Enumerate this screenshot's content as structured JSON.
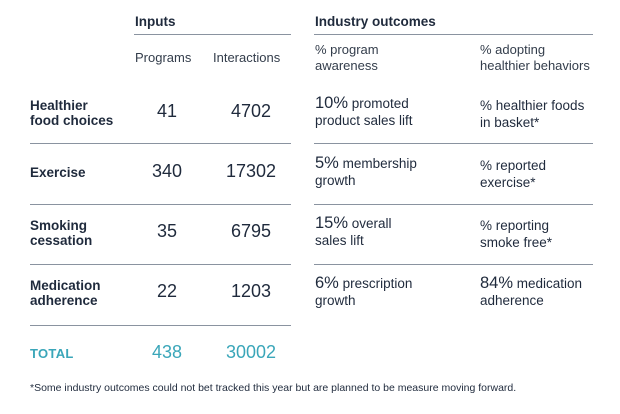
{
  "headers": {
    "inputs": "Inputs",
    "industry_outcomes": "Industry outcomes",
    "programs": "Programs",
    "interactions": "Interactions",
    "pct_awareness": [
      "% program",
      "awareness"
    ],
    "pct_adopting": [
      "% adopting",
      "healthier behaviors"
    ]
  },
  "rows": [
    {
      "label": [
        "Healthier",
        "food choices"
      ],
      "programs": "41",
      "interactions": "4702",
      "awareness": {
        "big": "10%",
        "rest1": " promoted",
        "rest2": "product sales lift"
      },
      "adopting": {
        "big": "",
        "rest1": "% healthier foods",
        "rest2": "in basket*"
      }
    },
    {
      "label": [
        "Exercise",
        ""
      ],
      "programs": "340",
      "interactions": "17302",
      "awareness": {
        "big": "5%",
        "rest1": " membership",
        "rest2": "growth"
      },
      "adopting": {
        "big": "",
        "rest1": "% reported",
        "rest2": "exercise*"
      }
    },
    {
      "label": [
        "Smoking",
        "cessation"
      ],
      "programs": "35",
      "interactions": "6795",
      "awareness": {
        "big": "15%",
        "rest1": " overall",
        "rest2": "sales lift"
      },
      "adopting": {
        "big": "",
        "rest1": "% reporting",
        "rest2": "smoke free*"
      }
    },
    {
      "label": [
        "Medication",
        "adherence"
      ],
      "programs": "22",
      "interactions": "1203",
      "awareness": {
        "big": "6%",
        "rest1": " prescription",
        "rest2": "growth"
      },
      "adopting": {
        "big": "84%",
        "rest1": " medication",
        "rest2": "adherence"
      }
    }
  ],
  "total": {
    "label": "TOTAL",
    "programs": "438",
    "interactions": "30002"
  },
  "footnote": "*Some industry outcomes could not bet tracked this year but are planned to be measure moving forward.",
  "colors": {
    "text": "#1f2a3c",
    "total_accent": "#3aa6b9",
    "rule": "#8a93a0"
  }
}
